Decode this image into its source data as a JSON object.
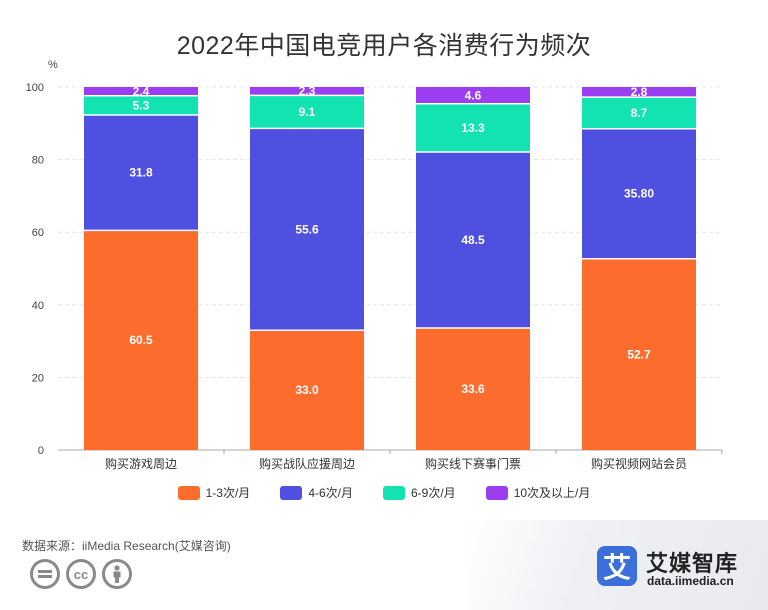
{
  "chart_data": {
    "type": "bar",
    "stacked": true,
    "title": "2022年中国电竞用户各消费行为频次",
    "ylabel": "%",
    "ylim": [
      0,
      100
    ],
    "yticks": [
      0,
      20,
      40,
      60,
      80,
      100
    ],
    "grid": true,
    "legend_position": "bottom",
    "categories": [
      "购买游戏周边",
      "购买战队应援周边",
      "购买线下赛事门票",
      "购买视频网站会员"
    ],
    "series": [
      {
        "name": "1-3次/月",
        "color": "#fc6c2d",
        "values": [
          60.5,
          33.0,
          33.6,
          52.7
        ],
        "labels": [
          "60.5",
          "33.0",
          "33.6",
          "52.7"
        ]
      },
      {
        "name": "4-6次/月",
        "color": "#5050e0",
        "values": [
          31.8,
          55.6,
          48.5,
          35.8
        ],
        "labels": [
          "31.8",
          "55.6",
          "48.5",
          "35.80"
        ]
      },
      {
        "name": "6-9次/月",
        "color": "#12e3b0",
        "values": [
          5.3,
          9.1,
          13.3,
          8.7
        ],
        "labels": [
          "5.3",
          "9.1",
          "13.3",
          "8.7"
        ]
      },
      {
        "name": "10次及以上/月",
        "color": "#9b3df0",
        "values": [
          2.4,
          2.3,
          4.6,
          2.8
        ],
        "labels": [
          "2.4",
          "2.3",
          "4.6",
          "2.8"
        ]
      }
    ]
  },
  "footer": {
    "source": "数据来源：iiMedia Research(艾媒咨询)",
    "logo_mark": "艾",
    "logo_name": "艾媒智库",
    "logo_url": "data.iimedia.cn",
    "cc_icons": [
      "equals-icon",
      "cc-icon",
      "person-icon"
    ]
  }
}
